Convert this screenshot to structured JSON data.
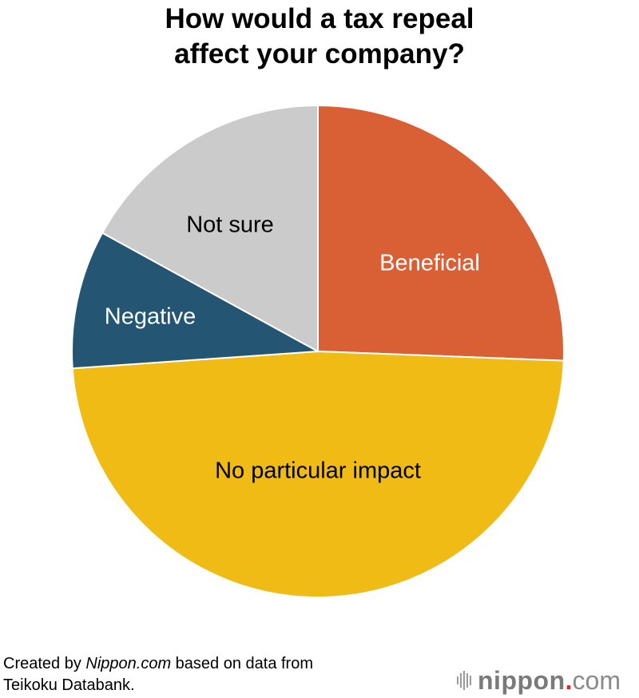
{
  "title": {
    "line1": "How would a tax repeal",
    "line2": "affect your company?"
  },
  "chart_data": {
    "type": "pie",
    "title": "How would a tax repeal affect your company?",
    "categories": [
      "Beneficial",
      "No particular impact",
      "Negative",
      "Not sure"
    ],
    "values": [
      25.6,
      48.3,
      9.1,
      17.0
    ],
    "unit": "%",
    "start_angle": "12 o'clock, clockwise",
    "colors": [
      "#d95f34",
      "#f0bb14",
      "#245673",
      "#cbcbcb"
    ],
    "label_colors": [
      "#ffffff",
      "#000000",
      "#ffffff",
      "#000000"
    ],
    "legend": "none (labels inside slices)"
  },
  "labels": {
    "beneficial": "Beneficial",
    "no_impact": "No particular impact",
    "negative": "Negative",
    "not_sure": "Not sure"
  },
  "footer": {
    "prefix": "Created by ",
    "source_italic": "Nippon.com",
    "suffix": " based on data from",
    "line2": "Teikoku Databank."
  },
  "logo": {
    "word": "nippon",
    "dot": ".",
    "tld": "com",
    "accent_color": "#e0262a"
  }
}
